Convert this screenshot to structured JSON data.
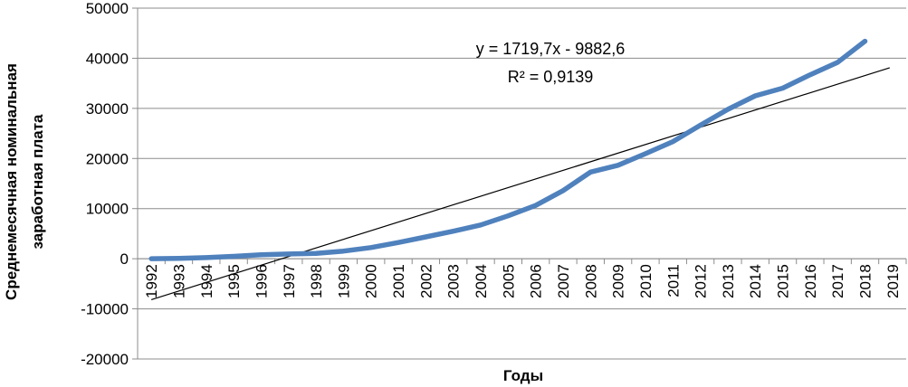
{
  "chart_data": {
    "type": "line",
    "title": "",
    "xlabel": "Годы",
    "ylabel_line1": "Среднемесячная номинальная",
    "ylabel_line2": "заработная плата",
    "categories": [
      "1992",
      "1993",
      "1994",
      "1995",
      "1996",
      "1997",
      "1998",
      "1999",
      "2000",
      "2001",
      "2002",
      "2003",
      "2004",
      "2005",
      "2006",
      "2007",
      "2008",
      "2009",
      "2010",
      "2011",
      "2012",
      "2013",
      "2014",
      "2015",
      "2016",
      "2017",
      "2018",
      "2019"
    ],
    "ylim": [
      -20000,
      50000
    ],
    "yticks": [
      -20000,
      -10000,
      0,
      10000,
      20000,
      30000,
      40000,
      50000
    ],
    "ytick_labels": [
      "-20000",
      "-10000",
      "0",
      "10000",
      "20000",
      "30000",
      "40000",
      "50000"
    ],
    "grid": "horizontal",
    "series": [
      {
        "values": [
          6,
          58,
          220,
          472,
          790,
          950,
          1051,
          1523,
          2223,
          3240,
          4360,
          5498,
          6740,
          8555,
          10634,
          13593,
          17290,
          18638,
          20952,
          23369,
          26629,
          29792,
          32495,
          34030,
          36709,
          39167,
          43400,
          null
        ],
        "color": "#4f81bd"
      }
    ],
    "trendline": {
      "type": "linear",
      "slope": 1719.7,
      "intercept": -9882.6,
      "x_start_index": 0,
      "x_end_index": 26.9,
      "color": "#000000",
      "equation": "y = 1719,7x - 9882,6",
      "r2": "R² = 0,9139"
    }
  }
}
